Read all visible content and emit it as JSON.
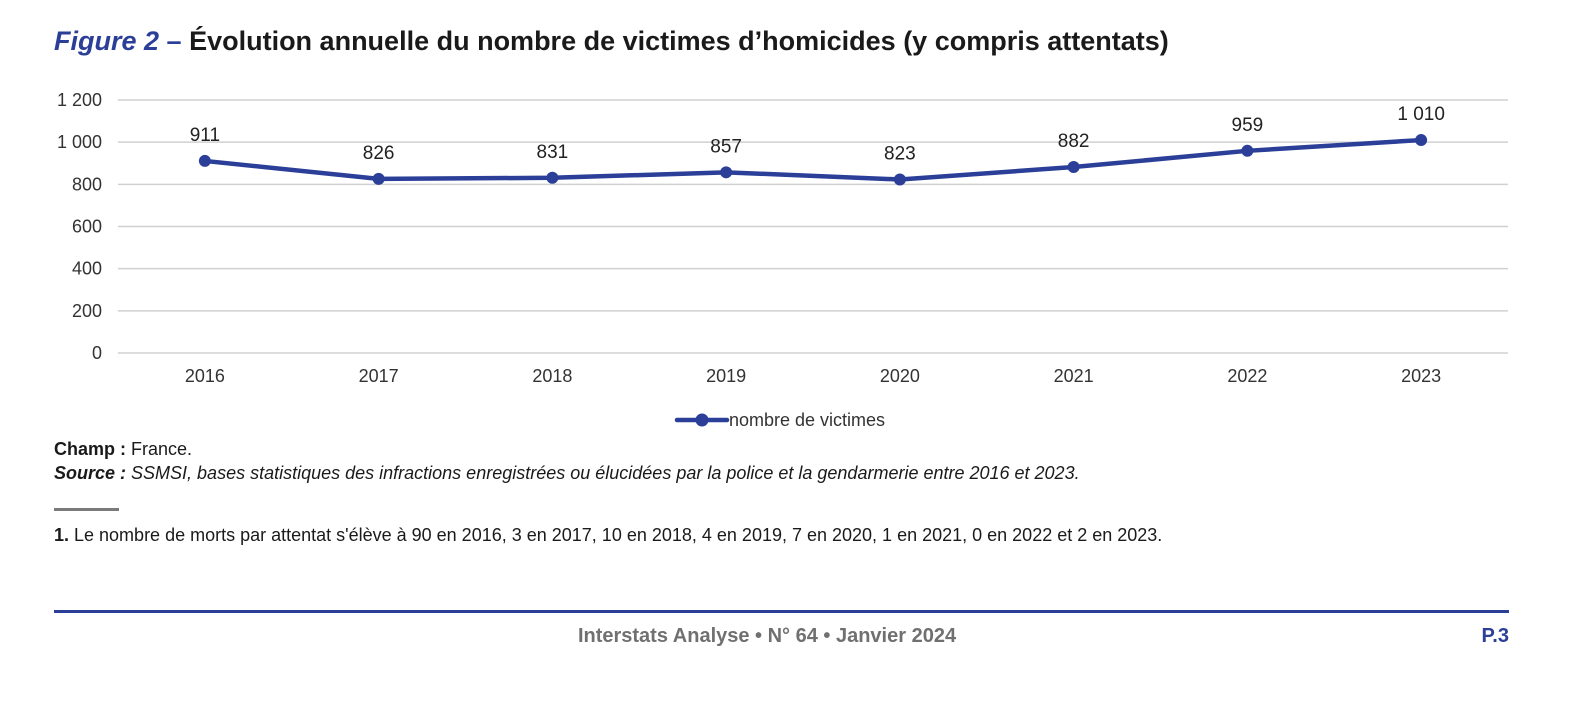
{
  "figure": {
    "label": "Figure 2",
    "dash": " – ",
    "title": "Évolution annuelle du nombre de victimes d’homicides (y compris attentats)"
  },
  "chart_data": {
    "type": "line",
    "categories": [
      "2016",
      "2017",
      "2018",
      "2019",
      "2020",
      "2021",
      "2022",
      "2023"
    ],
    "series": [
      {
        "name": "nombre de victimes",
        "values": [
          911,
          826,
          831,
          857,
          823,
          882,
          959,
          1010
        ]
      }
    ],
    "data_labels": [
      "911",
      "826",
      "831",
      "857",
      "823",
      "882",
      "959",
      "1 010"
    ],
    "y_ticks": [
      0,
      200,
      400,
      600,
      800,
      1000,
      1200
    ],
    "y_tick_labels": [
      "0",
      "200",
      "400",
      "600",
      "800",
      "1 000",
      "1 200"
    ],
    "ylim": [
      0,
      1200
    ],
    "grid": true,
    "legend_position": "bottom",
    "line_color": "#2b3f99"
  },
  "notes": {
    "champ_label": "Champ :",
    "champ_text": " France.",
    "source_label": "Source :",
    "source_text": " SSMSI, bases statistiques des infractions enregistrées ou élucidées par la police et la gendarmerie entre 2016 et 2023."
  },
  "footnote": {
    "number": "1.",
    "text": " Le nombre de morts par attentat s'élève à 90 en 2016, 3 en 2017, 10 en 2018, 4 en 2019, 7 en 2020, 1 en 2021, 0 en 2022 et 2 en 2023."
  },
  "footer": {
    "publication": "Interstats Analyse • N° 64 • Janvier 2024",
    "page": "P.3"
  }
}
